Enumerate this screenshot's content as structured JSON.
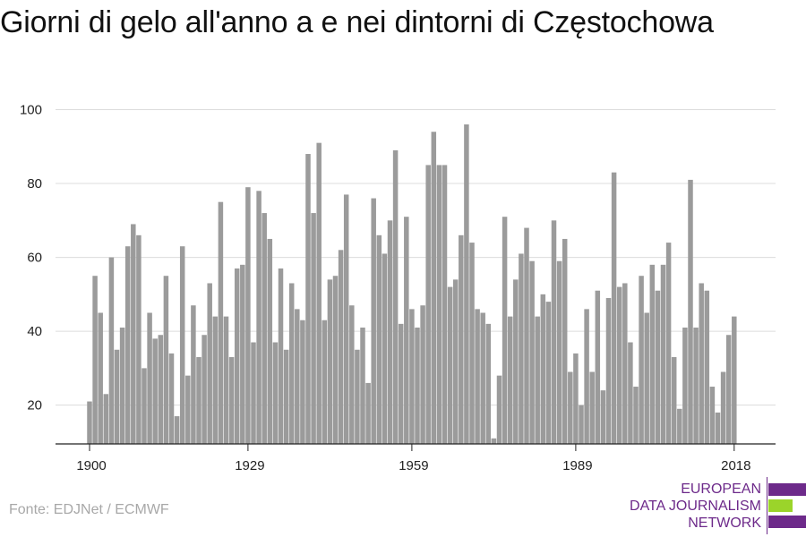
{
  "title": "Giorni di gelo all'anno a e nei dintorni di Częstochowa",
  "source": "Fonte: EDJNet / ECMWF",
  "logo": {
    "lines": [
      "EUROPEAN",
      "DATA JOURNALISM",
      "NETWORK"
    ],
    "colors": {
      "purple": "#6d2a8a",
      "green": "#9bd42a"
    }
  },
  "colors": {
    "bar": "#9b9b9b",
    "grid": "#dcdcdc",
    "axis": "#222222"
  },
  "chart_data": {
    "type": "bar",
    "title": "Giorni di gelo all'anno a e nei dintorni di Częstochowa",
    "xlabel": "",
    "ylabel": "",
    "x": [
      1900,
      1901,
      1902,
      1903,
      1904,
      1905,
      1906,
      1907,
      1908,
      1909,
      1910,
      1911,
      1912,
      1913,
      1914,
      1915,
      1916,
      1917,
      1918,
      1919,
      1920,
      1921,
      1922,
      1923,
      1924,
      1925,
      1926,
      1927,
      1928,
      1929,
      1930,
      1931,
      1932,
      1933,
      1934,
      1935,
      1936,
      1937,
      1938,
      1939,
      1940,
      1941,
      1942,
      1943,
      1944,
      1945,
      1946,
      1947,
      1948,
      1949,
      1950,
      1951,
      1952,
      1953,
      1954,
      1955,
      1956,
      1957,
      1958,
      1959,
      1960,
      1961,
      1962,
      1963,
      1964,
      1965,
      1966,
      1967,
      1968,
      1969,
      1970,
      1971,
      1972,
      1973,
      1974,
      1975,
      1976,
      1977,
      1978,
      1979,
      1980,
      1981,
      1982,
      1983,
      1984,
      1985,
      1986,
      1987,
      1988,
      1989,
      1990,
      1991,
      1992,
      1993,
      1994,
      1995,
      1996,
      1997,
      1998,
      1999,
      2000,
      2001,
      2002,
      2003,
      2004,
      2005,
      2006,
      2007,
      2008,
      2009,
      2010,
      2011,
      2012,
      2013,
      2014,
      2015,
      2016,
      2017,
      2018
    ],
    "values": [
      21,
      55,
      45,
      23,
      60,
      35,
      41,
      63,
      69,
      66,
      30,
      45,
      38,
      39,
      55,
      34,
      17,
      63,
      28,
      47,
      33,
      39,
      53,
      44,
      75,
      44,
      33,
      57,
      58,
      79,
      37,
      78,
      72,
      65,
      37,
      57,
      35,
      53,
      46,
      43,
      88,
      72,
      91,
      43,
      54,
      55,
      62,
      77,
      47,
      35,
      41,
      26,
      76,
      66,
      61,
      70,
      89,
      42,
      71,
      46,
      41,
      47,
      85,
      94,
      85,
      85,
      52,
      54,
      66,
      96,
      64,
      46,
      45,
      42,
      11,
      28,
      71,
      44,
      54,
      61,
      68,
      59,
      44,
      50,
      48,
      70,
      59,
      65,
      29,
      34,
      20,
      46,
      29,
      51,
      24,
      49,
      83,
      52,
      53,
      37,
      25,
      55,
      45,
      58,
      51,
      58,
      64,
      33,
      19,
      41,
      81,
      41,
      53,
      51,
      25,
      18,
      29,
      39,
      44
    ],
    "xticks": [
      1900,
      1929,
      1959,
      1989,
      2018
    ],
    "yticks": [
      20,
      40,
      60,
      80,
      100
    ],
    "ylim": [
      9.5,
      100
    ],
    "grid": "horizontal"
  }
}
